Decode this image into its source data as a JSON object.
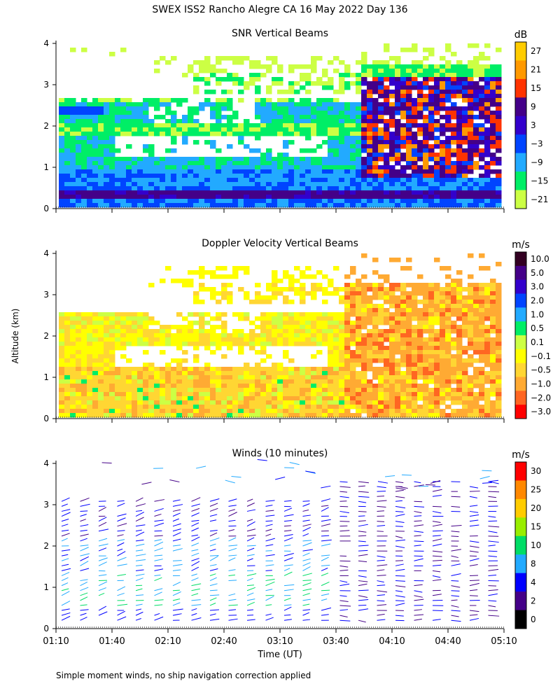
{
  "title": "SWEX ISS2 Rancho Alegre CA  16 May 2022 Day 136",
  "footnote": "Simple moment winds, no ship navigation correction applied",
  "x_axis_label": "Time (UT)",
  "y_axis_label": "Altitude (km)",
  "x_ticks": [
    "01:10",
    "01:40",
    "02:10",
    "02:40",
    "03:10",
    "03:40",
    "04:10",
    "04:40",
    "05:10"
  ],
  "y_ticks": [
    "0",
    "1",
    "2",
    "3",
    "4"
  ],
  "chart_data": [
    {
      "type": "heatmap",
      "title": "SNR Vertical Beams",
      "x": [
        "01:10",
        "05:10"
      ],
      "ylim": [
        0,
        4
      ],
      "colorbar": {
        "unit": "dB",
        "ticks": [
          "27",
          "21",
          "15",
          "9",
          "3",
          "−3",
          "−9",
          "−15",
          "−21"
        ],
        "colors": [
          "#ffcc00",
          "#ff9900",
          "#ff3300",
          "#440088",
          "#3300cc",
          "#0044ff",
          "#22aaff",
          "#00ee66",
          "#ccff44"
        ]
      }
    },
    {
      "type": "heatmap",
      "title": "Doppler Velocity Vertical Beams",
      "x": [
        "01:10",
        "05:10"
      ],
      "ylim": [
        0,
        4
      ],
      "colorbar": {
        "unit": "m/s",
        "ticks": [
          "10.0",
          "5.0",
          "3.0",
          "2.0",
          "1.0",
          "0.5",
          "0.1",
          "−0.1",
          "−0.5",
          "−1.0",
          "−2.0",
          "−3.0"
        ],
        "colors": [
          "#330022",
          "#440088",
          "#3300cc",
          "#0044ff",
          "#22aaff",
          "#00ee66",
          "#ccff44",
          "#ffff00",
          "#ffd633",
          "#ffaa33",
          "#ff6622",
          "#ff0000"
        ]
      }
    },
    {
      "type": "scatter",
      "title": "Winds (10 minutes)",
      "x": [
        "01:10",
        "05:10"
      ],
      "ylim": [
        0,
        4
      ],
      "colorbar": {
        "unit": "m/s",
        "ticks": [
          "30",
          "25",
          "20",
          "15",
          "10",
          "8",
          "4",
          "2",
          "0"
        ],
        "colors": [
          "#ff0000",
          "#ff8800",
          "#ffcc00",
          "#99ee00",
          "#00dd66",
          "#22aaff",
          "#0000ff",
          "#440088",
          "#000000"
        ]
      }
    }
  ]
}
